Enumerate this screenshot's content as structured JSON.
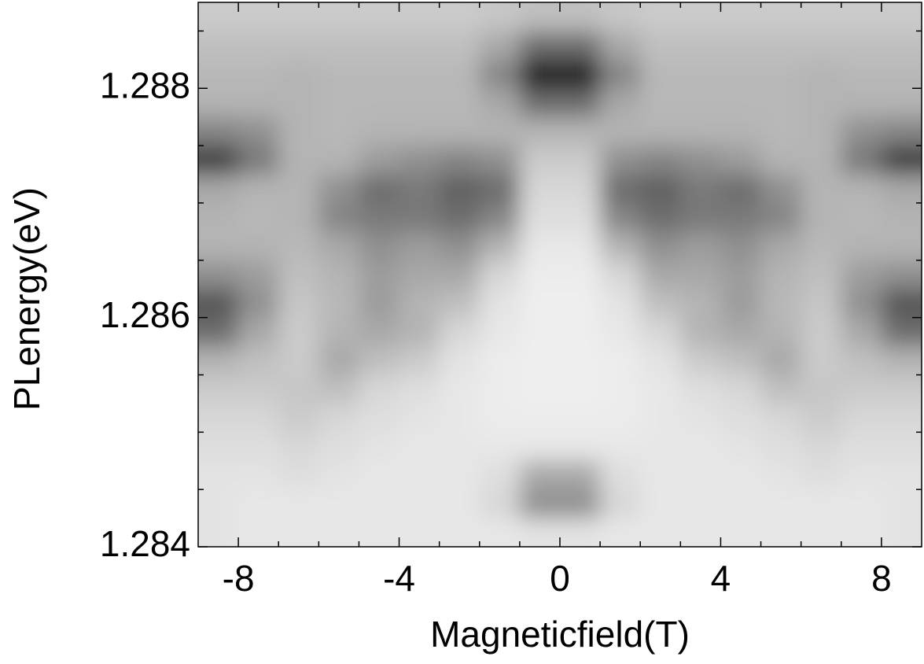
{
  "chart_data": {
    "type": "heatmap",
    "xlabel": "Magneticfield(T)",
    "ylabel": "PLenergy(eV)",
    "colormap": "Greys",
    "xlim": [
      -9,
      9
    ],
    "ylim": [
      1.284,
      1.28875
    ],
    "xticks": [
      -8,
      -4,
      0,
      4,
      8
    ],
    "yticks": [
      1.284,
      1.286,
      1.288
    ],
    "xminorticks": [
      -7,
      -6,
      -5,
      -3,
      -2,
      -1,
      1,
      2,
      3,
      5,
      6,
      7
    ],
    "yminorticks": [
      1.2845,
      1.285,
      1.2855,
      1.2865,
      1.287,
      1.2875,
      1.2885
    ],
    "x_edges": [
      -9,
      -8,
      -7,
      -6,
      -5,
      -4,
      -3,
      -2,
      -1,
      0,
      1,
      2,
      3,
      4,
      5,
      6,
      7,
      8,
      9
    ],
    "y_edges": [
      1.284,
      1.28425,
      1.2845,
      1.28475,
      1.285,
      1.28525,
      1.2855,
      1.28575,
      1.286,
      1.28625,
      1.2865,
      1.28675,
      1.287,
      1.28725,
      1.2875,
      1.28775,
      1.288,
      1.28825,
      1.2885,
      1.28875
    ],
    "z": [
      [
        0.1,
        0.08,
        0.08,
        0.08,
        0.08,
        0.08,
        0.08,
        0.08,
        0.1,
        0.1,
        0.08,
        0.08,
        0.08,
        0.08,
        0.08,
        0.08,
        0.08,
        0.1
      ],
      [
        0.1,
        0.08,
        0.08,
        0.08,
        0.08,
        0.08,
        0.08,
        0.15,
        0.45,
        0.45,
        0.15,
        0.08,
        0.08,
        0.08,
        0.08,
        0.08,
        0.08,
        0.1
      ],
      [
        0.1,
        0.1,
        0.12,
        0.1,
        0.08,
        0.08,
        0.08,
        0.12,
        0.35,
        0.35,
        0.12,
        0.08,
        0.08,
        0.08,
        0.1,
        0.12,
        0.1,
        0.1
      ],
      [
        0.12,
        0.12,
        0.15,
        0.12,
        0.1,
        0.08,
        0.08,
        0.08,
        0.08,
        0.08,
        0.08,
        0.08,
        0.08,
        0.1,
        0.12,
        0.15,
        0.12,
        0.12
      ],
      [
        0.15,
        0.15,
        0.2,
        0.15,
        0.12,
        0.1,
        0.08,
        0.06,
        0.06,
        0.06,
        0.06,
        0.08,
        0.1,
        0.12,
        0.15,
        0.2,
        0.15,
        0.15
      ],
      [
        0.2,
        0.2,
        0.22,
        0.25,
        0.15,
        0.12,
        0.08,
        0.06,
        0.05,
        0.05,
        0.06,
        0.08,
        0.12,
        0.15,
        0.25,
        0.22,
        0.2,
        0.2
      ],
      [
        0.3,
        0.25,
        0.2,
        0.35,
        0.25,
        0.2,
        0.1,
        0.06,
        0.05,
        0.05,
        0.06,
        0.1,
        0.2,
        0.25,
        0.35,
        0.2,
        0.25,
        0.3
      ],
      [
        0.6,
        0.35,
        0.2,
        0.3,
        0.35,
        0.3,
        0.15,
        0.08,
        0.05,
        0.05,
        0.08,
        0.15,
        0.3,
        0.35,
        0.3,
        0.2,
        0.35,
        0.6
      ],
      [
        0.7,
        0.45,
        0.22,
        0.28,
        0.4,
        0.3,
        0.25,
        0.1,
        0.05,
        0.05,
        0.1,
        0.25,
        0.3,
        0.4,
        0.28,
        0.22,
        0.45,
        0.7
      ],
      [
        0.45,
        0.4,
        0.25,
        0.3,
        0.4,
        0.35,
        0.35,
        0.15,
        0.06,
        0.06,
        0.15,
        0.35,
        0.35,
        0.4,
        0.3,
        0.25,
        0.4,
        0.45
      ],
      [
        0.3,
        0.3,
        0.28,
        0.35,
        0.45,
        0.4,
        0.45,
        0.3,
        0.08,
        0.08,
        0.3,
        0.45,
        0.4,
        0.45,
        0.35,
        0.28,
        0.3,
        0.3
      ],
      [
        0.3,
        0.28,
        0.3,
        0.5,
        0.55,
        0.55,
        0.6,
        0.5,
        0.12,
        0.12,
        0.5,
        0.6,
        0.55,
        0.55,
        0.5,
        0.3,
        0.28,
        0.3
      ],
      [
        0.35,
        0.3,
        0.3,
        0.45,
        0.6,
        0.55,
        0.65,
        0.6,
        0.15,
        0.15,
        0.6,
        0.65,
        0.55,
        0.6,
        0.45,
        0.3,
        0.3,
        0.35
      ],
      [
        0.8,
        0.55,
        0.3,
        0.3,
        0.4,
        0.45,
        0.5,
        0.45,
        0.2,
        0.2,
        0.45,
        0.5,
        0.45,
        0.4,
        0.3,
        0.3,
        0.55,
        0.8
      ],
      [
        0.5,
        0.45,
        0.3,
        0.28,
        0.3,
        0.3,
        0.3,
        0.3,
        0.3,
        0.3,
        0.3,
        0.3,
        0.3,
        0.3,
        0.28,
        0.3,
        0.45,
        0.5
      ],
      [
        0.3,
        0.3,
        0.3,
        0.28,
        0.28,
        0.28,
        0.28,
        0.35,
        0.6,
        0.6,
        0.35,
        0.28,
        0.28,
        0.28,
        0.28,
        0.3,
        0.3,
        0.3
      ],
      [
        0.28,
        0.28,
        0.3,
        0.28,
        0.28,
        0.28,
        0.28,
        0.5,
        0.95,
        0.95,
        0.5,
        0.28,
        0.28,
        0.28,
        0.28,
        0.3,
        0.28,
        0.28
      ],
      [
        0.25,
        0.25,
        0.25,
        0.25,
        0.25,
        0.25,
        0.25,
        0.35,
        0.6,
        0.6,
        0.35,
        0.25,
        0.25,
        0.25,
        0.25,
        0.25,
        0.25,
        0.25
      ],
      [
        0.2,
        0.2,
        0.2,
        0.2,
        0.2,
        0.2,
        0.2,
        0.22,
        0.25,
        0.25,
        0.22,
        0.2,
        0.2,
        0.2,
        0.2,
        0.2,
        0.2,
        0.2
      ]
    ]
  }
}
